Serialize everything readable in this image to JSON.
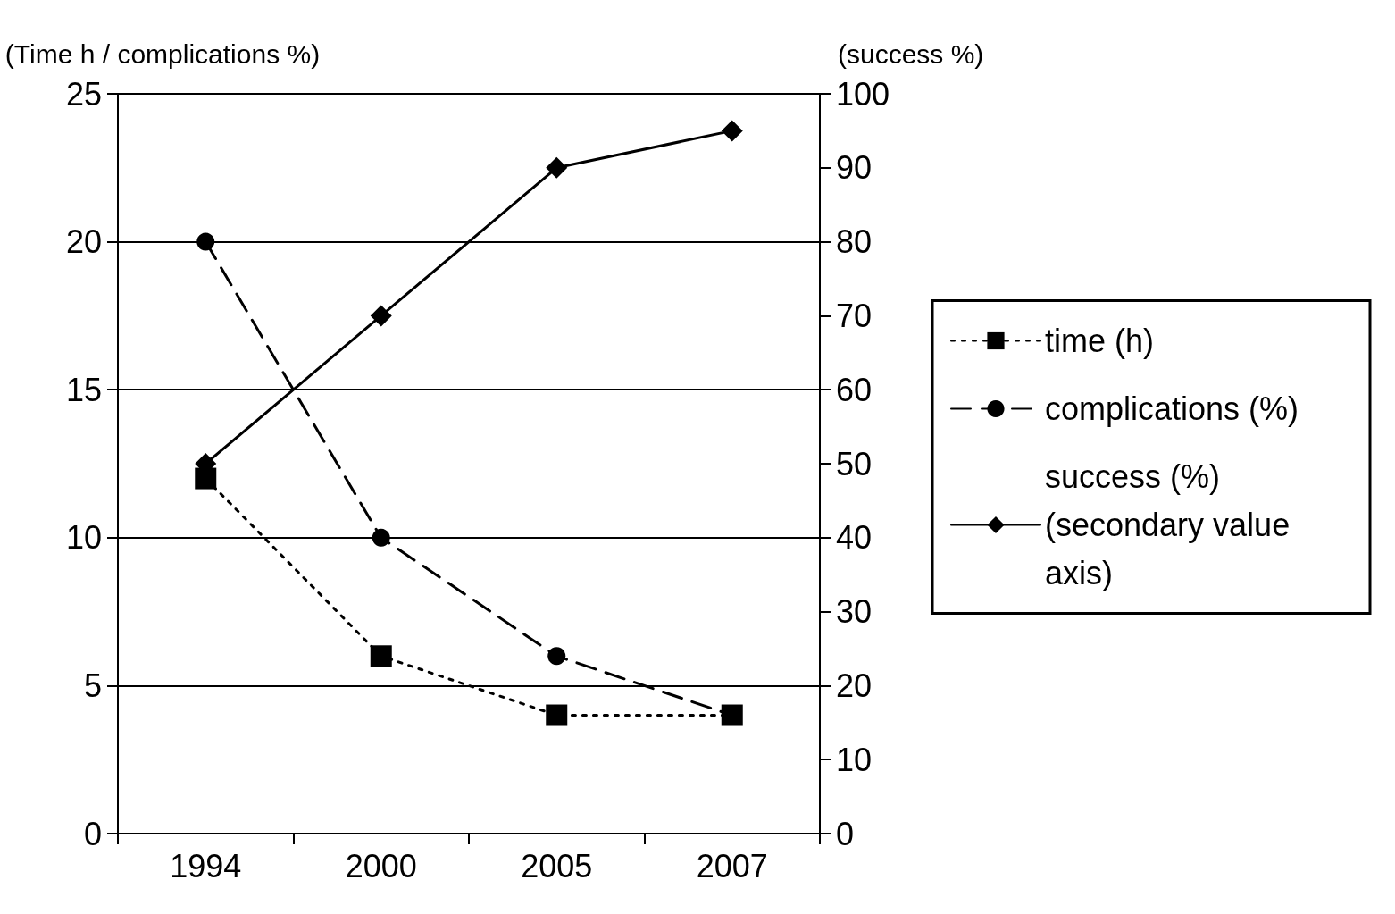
{
  "chart_data": {
    "type": "line",
    "categories": [
      "1994",
      "2000",
      "2005",
      "2007"
    ],
    "ylabel": "(Time h / complications %)",
    "y2label": "(success %)",
    "ylim": [
      0,
      25
    ],
    "yticks": [
      0,
      5,
      10,
      15,
      20,
      25
    ],
    "y2lim": [
      0,
      100
    ],
    "y2ticks": [
      0,
      10,
      20,
      30,
      40,
      50,
      60,
      70,
      80,
      90,
      100
    ],
    "grid": "y",
    "legend": "right",
    "series": [
      {
        "name": "time (h)",
        "color": "#000000",
        "values": [
          12,
          6,
          4,
          4
        ],
        "marker": "square",
        "line_style": "dotted"
      },
      {
        "name": "complications (%)",
        "color": "#000000",
        "values": [
          20,
          10,
          6,
          4
        ],
        "marker": "circle",
        "line_style": "dashed"
      },
      {
        "name": "success (%) (secondary value axis)",
        "color": "#000000",
        "values": [
          50,
          70,
          90,
          95
        ],
        "marker": "diamond",
        "line_style": "solid",
        "axis": "y2"
      }
    ]
  }
}
